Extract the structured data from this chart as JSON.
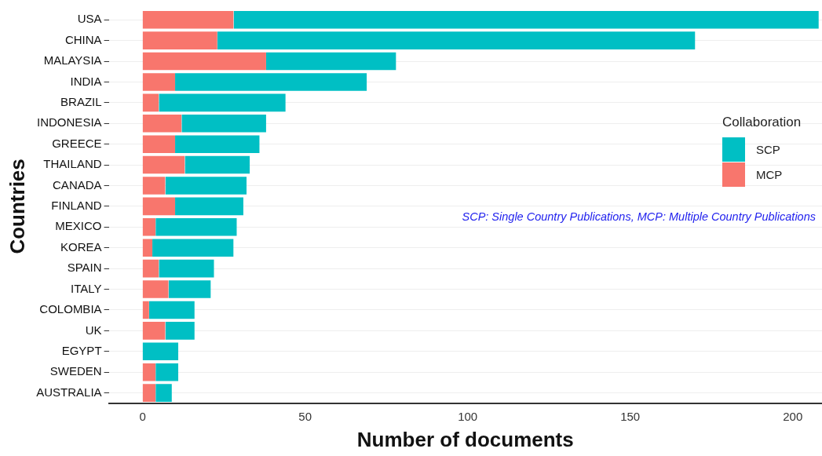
{
  "chart_data": {
    "type": "bar",
    "orientation": "horizontal",
    "stacked": true,
    "xlabel": "Number of documents",
    "ylabel": "Countries",
    "legend_title": "Collaboration",
    "legend": "right",
    "categories": [
      "USA",
      "CHINA",
      "MALAYSIA",
      "INDIA",
      "BRAZIL",
      "INDONESIA",
      "GREECE",
      "THAILAND",
      "CANADA",
      "FINLAND",
      "MEXICO",
      "KOREA",
      "SPAIN",
      "ITALY",
      "COLOMBIA",
      "UK",
      "EGYPT",
      "SWEDEN",
      "AUSTRALIA"
    ],
    "series": [
      {
        "name": "MCP",
        "color": "#f8766d",
        "values": [
          28,
          23,
          38,
          10,
          5,
          12,
          10,
          13,
          7,
          10,
          4,
          3,
          5,
          8,
          2,
          7,
          0,
          4,
          4
        ]
      },
      {
        "name": "SCP",
        "color": "#00bfc4",
        "values": [
          180,
          147,
          40,
          59,
          39,
          26,
          26,
          20,
          25,
          21,
          25,
          25,
          17,
          13,
          14,
          9,
          11,
          7,
          5
        ]
      }
    ],
    "xlim": [
      -10.4,
      209
    ],
    "xticks": [
      0,
      50,
      100,
      150,
      200
    ],
    "grid": "y",
    "annotations": [
      "SCP: Single Country Publications, MCP: Multiple Country Publications"
    ]
  }
}
